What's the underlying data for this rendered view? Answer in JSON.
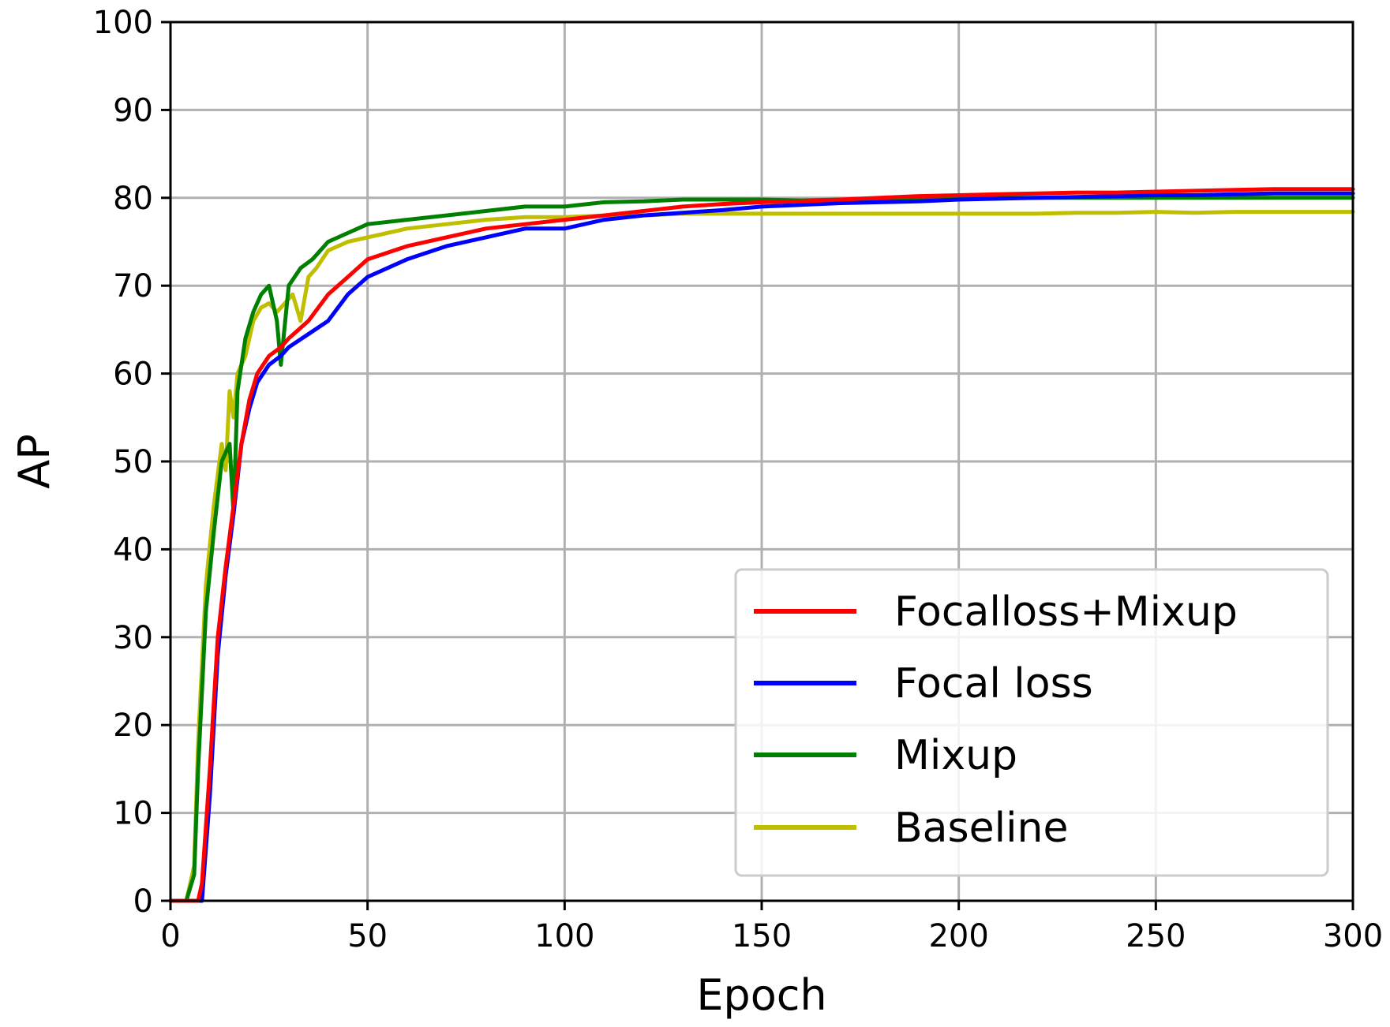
{
  "chart_data": {
    "type": "line",
    "title": "",
    "xlabel": "Epoch",
    "ylabel": "AP",
    "xlim": [
      0,
      300
    ],
    "ylim": [
      0,
      100
    ],
    "xticks": [
      0,
      50,
      100,
      150,
      200,
      250,
      300
    ],
    "yticks": [
      0,
      10,
      20,
      30,
      40,
      50,
      60,
      70,
      80,
      90,
      100
    ],
    "xtick_labels": [
      "0",
      "50",
      "100",
      "150",
      "200",
      "250",
      "300"
    ],
    "ytick_labels": [
      "0",
      "10",
      "20",
      "30",
      "40",
      "50",
      "60",
      "70",
      "80",
      "90",
      "100"
    ],
    "grid": true,
    "legend_position": "lower-right",
    "series": [
      {
        "name": "Focalloss+Mixup",
        "color": "#ff0000",
        "x": [
          0,
          5,
          7,
          8,
          10,
          12,
          14,
          16,
          18,
          20,
          22,
          25,
          28,
          30,
          35,
          40,
          45,
          50,
          60,
          70,
          80,
          90,
          100,
          110,
          120,
          130,
          140,
          150,
          160,
          170,
          180,
          190,
          200,
          210,
          220,
          230,
          240,
          250,
          260,
          270,
          280,
          290,
          300
        ],
        "y": [
          0,
          0,
          0,
          2,
          15,
          30,
          38,
          45,
          52,
          57,
          60,
          62,
          63,
          64,
          66,
          69,
          71,
          73,
          74.5,
          75.5,
          76.5,
          77,
          77.5,
          78,
          78.5,
          79,
          79.3,
          79.5,
          79.6,
          79.8,
          80,
          80.2,
          80.3,
          80.4,
          80.5,
          80.6,
          80.6,
          80.7,
          80.8,
          80.9,
          81,
          81,
          81
        ]
      },
      {
        "name": "Focal loss",
        "color": "#0000ff",
        "x": [
          0,
          5,
          7,
          8,
          10,
          12,
          14,
          16,
          18,
          20,
          22,
          25,
          28,
          30,
          35,
          40,
          45,
          50,
          60,
          70,
          80,
          90,
          100,
          110,
          120,
          130,
          140,
          150,
          160,
          170,
          180,
          190,
          200,
          210,
          220,
          230,
          240,
          250,
          260,
          270,
          280,
          290,
          300
        ],
        "y": [
          0,
          0,
          0,
          0,
          12,
          28,
          37,
          44,
          52,
          56,
          59,
          61,
          62,
          63,
          64.5,
          66,
          69,
          71,
          73,
          74.5,
          75.5,
          76.5,
          76.5,
          77.5,
          78,
          78.3,
          78.6,
          79,
          79.2,
          79.4,
          79.5,
          79.6,
          79.8,
          79.9,
          80,
          80.1,
          80.2,
          80.3,
          80.3,
          80.4,
          80.5,
          80.5,
          80.5
        ]
      },
      {
        "name": "Mixup",
        "color": "#008000",
        "x": [
          0,
          4,
          6,
          7,
          9,
          11,
          13,
          15,
          16,
          17,
          19,
          21,
          23,
          25,
          27,
          28,
          30,
          33,
          36,
          40,
          45,
          50,
          60,
          70,
          80,
          90,
          100,
          110,
          120,
          130,
          140,
          150,
          160,
          170,
          180,
          190,
          200,
          210,
          220,
          230,
          240,
          250,
          260,
          270,
          280,
          290,
          300
        ],
        "y": [
          0,
          0,
          3,
          15,
          33,
          42,
          50,
          52,
          44,
          58,
          64,
          67,
          69,
          70,
          66,
          61,
          70,
          72,
          73,
          75,
          76,
          77,
          77.5,
          78,
          78.5,
          79,
          79,
          79.5,
          79.6,
          79.8,
          79.8,
          79.8,
          79.7,
          79.8,
          79.8,
          79.9,
          80,
          80,
          80,
          80,
          80,
          80,
          80,
          80,
          80,
          80,
          80
        ]
      },
      {
        "name": "Baseline",
        "color": "#bfbf00",
        "x": [
          0,
          4,
          6,
          7,
          9,
          11,
          13,
          14,
          15,
          16,
          17,
          19,
          21,
          23,
          25,
          27,
          29,
          31,
          33,
          35,
          37,
          40,
          45,
          50,
          60,
          70,
          80,
          90,
          100,
          110,
          120,
          130,
          140,
          150,
          160,
          170,
          180,
          190,
          200,
          210,
          220,
          230,
          240,
          250,
          260,
          270,
          280,
          290,
          300
        ],
        "y": [
          0,
          0,
          4,
          18,
          36,
          45,
          52,
          49,
          58,
          55,
          60,
          62,
          66,
          67.5,
          68,
          67,
          68,
          69,
          66,
          71,
          72,
          74,
          75,
          75.5,
          76.5,
          77,
          77.5,
          77.8,
          77.8,
          78,
          78,
          78.2,
          78.2,
          78.2,
          78.2,
          78.2,
          78.2,
          78.2,
          78.2,
          78.2,
          78.2,
          78.3,
          78.3,
          78.4,
          78.3,
          78.4,
          78.4,
          78.4,
          78.4
        ]
      }
    ]
  }
}
